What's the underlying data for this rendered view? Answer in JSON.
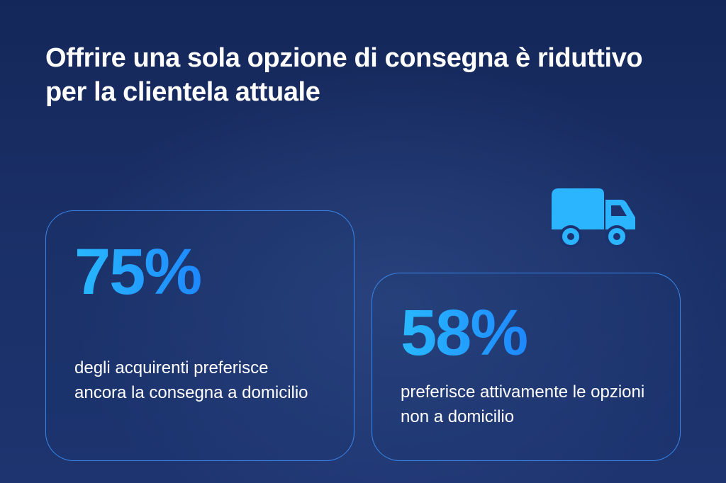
{
  "header": {
    "title": "Offrire una sola opzione di consegna è riduttivo per la clientela attuale"
  },
  "stats": [
    {
      "value": "75%",
      "description": "degli acquirenti preferisce ancora la consegna a domicilio"
    },
    {
      "value": "58%",
      "description": "preferisce attivamente le opzioni non a domicilio"
    }
  ],
  "icons": {
    "truck": "truck-icon"
  },
  "colors": {
    "background": "#1a2f66",
    "accent": "#28b9ff",
    "accent_end": "#1e88ff",
    "card_border": "#3a86e8",
    "text": "#ffffff"
  }
}
